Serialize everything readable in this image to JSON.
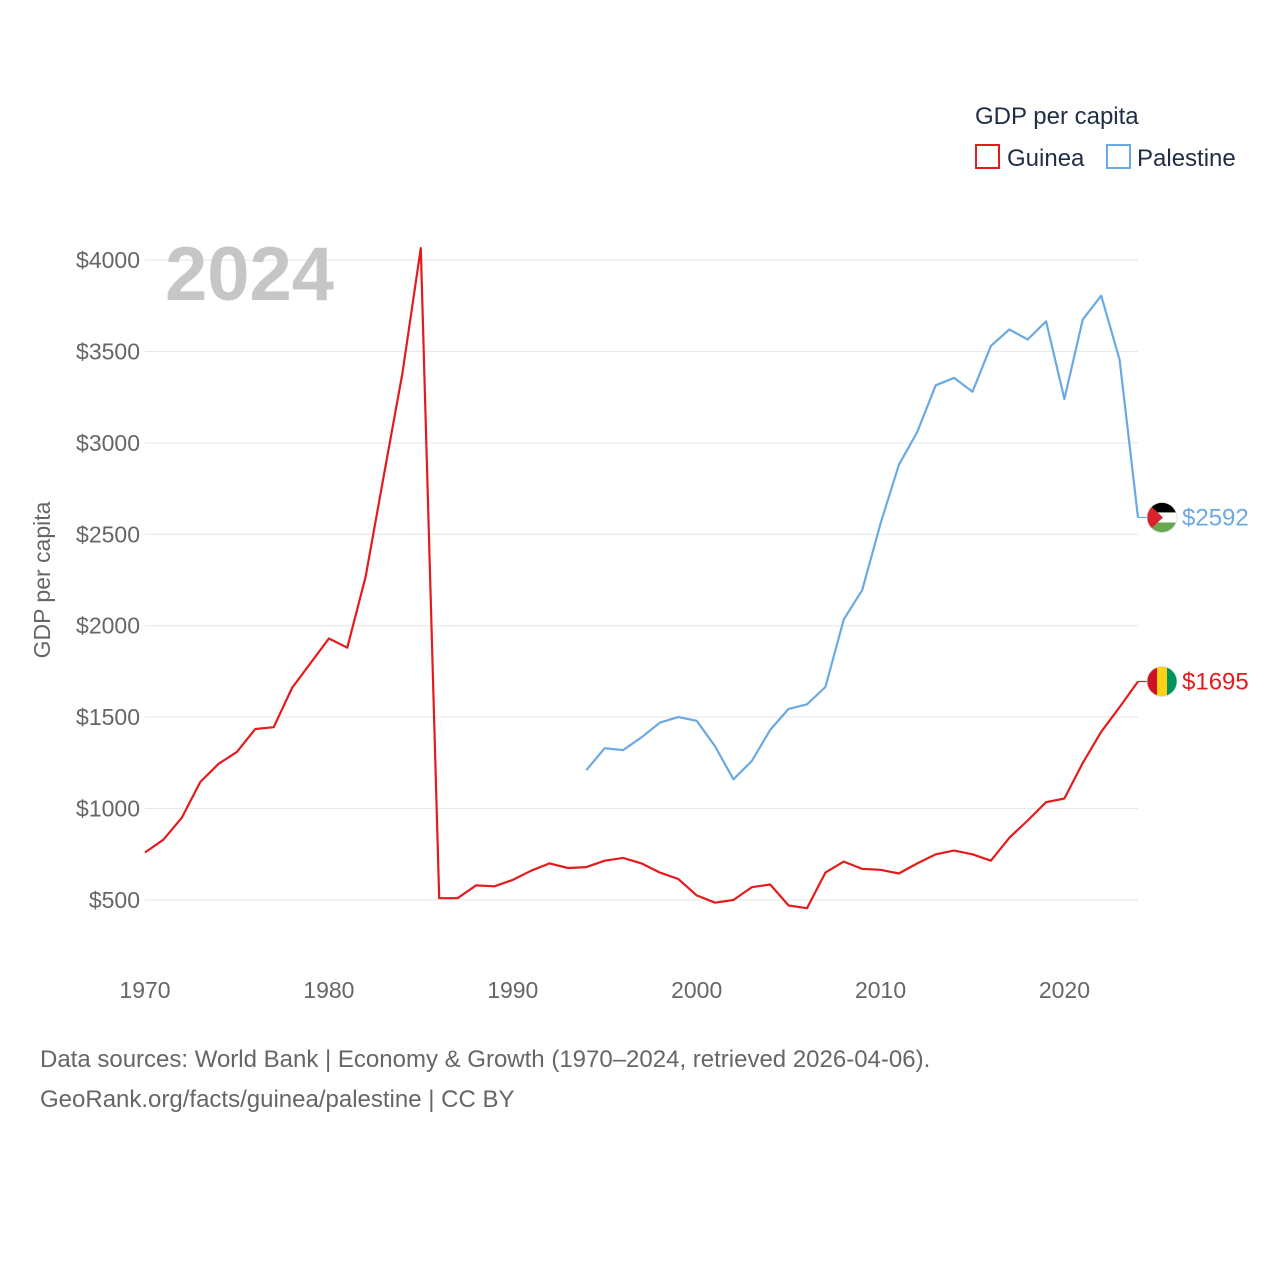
{
  "chart_data": {
    "type": "line",
    "title": "GDP per capita",
    "current_year_label": "2024",
    "ylabel": "GDP per capita",
    "xlabel": "",
    "xlim": [
      1970,
      2024
    ],
    "ylim": [
      200,
      4100
    ],
    "x_ticks": [
      1970,
      1980,
      1990,
      2000,
      2010,
      2020
    ],
    "y_ticks": [
      {
        "value": 500,
        "label": "$500"
      },
      {
        "value": 1000,
        "label": "$1000"
      },
      {
        "value": 1500,
        "label": "$1500"
      },
      {
        "value": 2000,
        "label": "$2000"
      },
      {
        "value": 2500,
        "label": "$2500"
      },
      {
        "value": 3000,
        "label": "$3000"
      },
      {
        "value": 3500,
        "label": "$3500"
      },
      {
        "value": 4000,
        "label": "$4000"
      }
    ],
    "series": [
      {
        "name": "Guinea",
        "color": "#e41a1c",
        "end_label": "$1695",
        "flag": "guinea-flag",
        "x": [
          1970,
          1971,
          1972,
          1973,
          1974,
          1975,
          1976,
          1977,
          1978,
          1979,
          1980,
          1981,
          1982,
          1983,
          1984,
          1985,
          1986,
          1987,
          1988,
          1989,
          1990,
          1991,
          1992,
          1993,
          1994,
          1995,
          1996,
          1997,
          1998,
          1999,
          2000,
          2001,
          2002,
          2003,
          2004,
          2005,
          2006,
          2007,
          2008,
          2009,
          2010,
          2011,
          2012,
          2013,
          2014,
          2015,
          2016,
          2017,
          2018,
          2019,
          2020,
          2021,
          2022,
          2023,
          2024
        ],
        "values": [
          760,
          830,
          950,
          1145,
          1245,
          1310,
          1435,
          1445,
          1660,
          1795,
          1930,
          1880,
          2270,
          2830,
          3380,
          4065,
          510,
          510,
          580,
          575,
          610,
          660,
          700,
          675,
          680,
          715,
          730,
          700,
          650,
          615,
          525,
          485,
          500,
          570,
          585,
          470,
          455,
          650,
          710,
          670,
          665,
          645,
          700,
          750,
          770,
          750,
          715,
          840,
          935,
          1035,
          1055,
          1250,
          1420,
          1555,
          1695
        ]
      },
      {
        "name": "Palestine",
        "color": "#6aa9e3",
        "end_label": "$2592",
        "flag": "palestine-flag",
        "x": [
          1994,
          1995,
          1996,
          1997,
          1998,
          1999,
          2000,
          2001,
          2002,
          2003,
          2004,
          2005,
          2006,
          2007,
          2008,
          2009,
          2010,
          2011,
          2012,
          2013,
          2014,
          2015,
          2016,
          2017,
          2018,
          2019,
          2020,
          2021,
          2022,
          2023,
          2024
        ],
        "values": [
          1210,
          1330,
          1320,
          1390,
          1470,
          1500,
          1480,
          1340,
          1160,
          1260,
          1430,
          1545,
          1570,
          1665,
          2035,
          2195,
          2560,
          2880,
          3060,
          3315,
          3355,
          3280,
          3530,
          3620,
          3565,
          3665,
          3240,
          3675,
          3805,
          3455,
          2592
        ]
      }
    ]
  },
  "legend": {
    "title": "GDP per capita",
    "items": [
      {
        "label": "Guinea",
        "color": "#e41a1c"
      },
      {
        "label": "Palestine",
        "color": "#6aa9e3"
      }
    ]
  },
  "footer": {
    "line1": "Data sources: World Bank | Economy & Growth (1970–2024, retrieved 2026-04-06).",
    "line2": "GeoRank.org/facts/guinea/palestine | CC BY"
  }
}
